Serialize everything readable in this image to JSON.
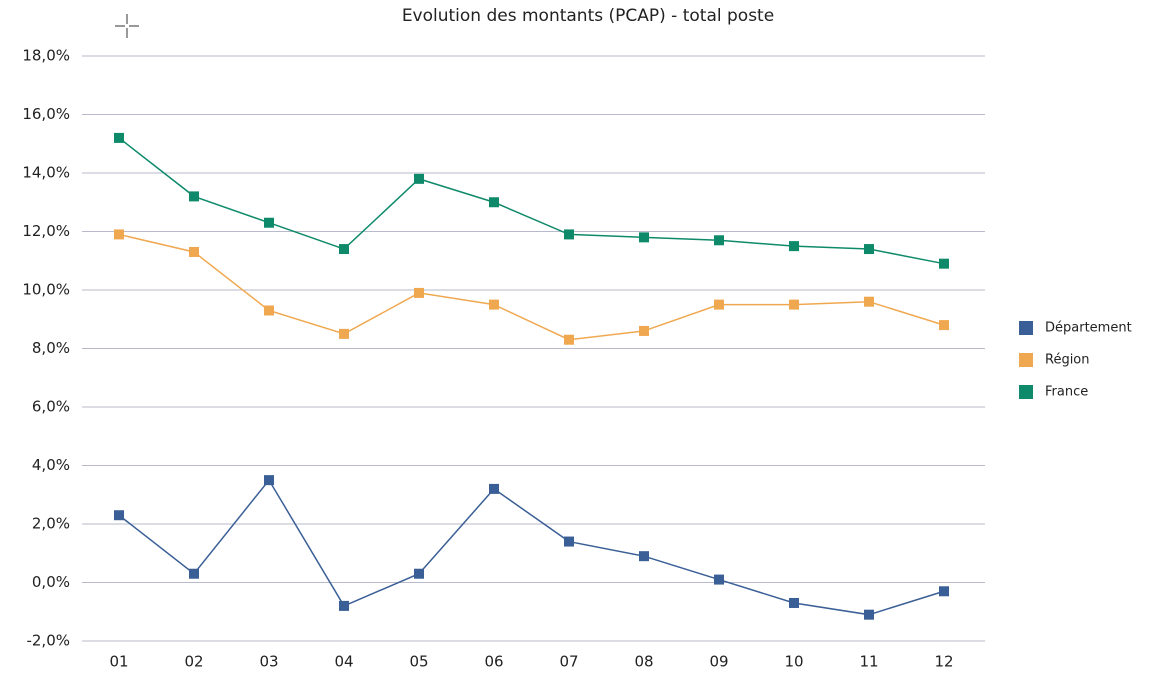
{
  "chart_data": {
    "type": "line",
    "title": "Evolution des montants (PCAP) - total poste",
    "categories": [
      "01",
      "02",
      "03",
      "04",
      "05",
      "06",
      "07",
      "08",
      "09",
      "10",
      "11",
      "12"
    ],
    "series": [
      {
        "name": "Département",
        "color": "#3a5f96",
        "values": [
          2.3,
          0.3,
          3.5,
          -0.8,
          0.3,
          3.2,
          1.4,
          0.9,
          0.1,
          -0.7,
          -1.1,
          -0.3
        ]
      },
      {
        "name": "Région",
        "color": "#f0a850",
        "values": [
          11.9,
          11.3,
          9.3,
          8.5,
          9.9,
          9.5,
          8.3,
          8.6,
          9.5,
          9.5,
          9.6,
          8.8
        ]
      },
      {
        "name": "France",
        "color": "#0e8a6a",
        "values": [
          15.2,
          13.2,
          12.3,
          11.4,
          13.8,
          13.0,
          11.9,
          11.8,
          11.7,
          11.5,
          11.4,
          10.9
        ]
      }
    ],
    "ylim": [
      -2,
      18
    ],
    "yticks": [
      {
        "value": -2,
        "label": "-2,0%"
      },
      {
        "value": 0,
        "label": "0,0%"
      },
      {
        "value": 2,
        "label": "2,0%"
      },
      {
        "value": 4,
        "label": "4,0%"
      },
      {
        "value": 6,
        "label": "6,0%"
      },
      {
        "value": 8,
        "label": "8,0%"
      },
      {
        "value": 10,
        "label": "10,0%"
      },
      {
        "value": 12,
        "label": "12,0%"
      },
      {
        "value": 14,
        "label": "14,0%"
      },
      {
        "value": 16,
        "label": "16,0%"
      },
      {
        "value": 18,
        "label": "18,0%"
      }
    ],
    "grid": true,
    "legend": "right"
  }
}
